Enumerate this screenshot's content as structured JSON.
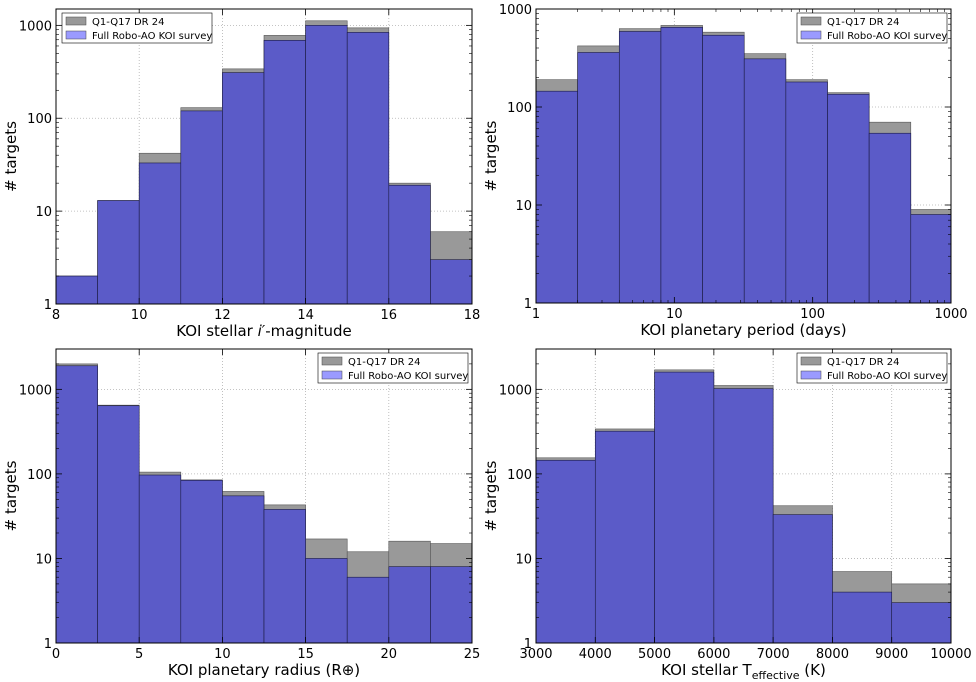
{
  "colors": {
    "q1q17": "#999999",
    "q1q17_edge": "#555555",
    "robo": "#5b5bc8",
    "robo_legend": "#9a9aff",
    "grid": "#b0b0b0"
  },
  "chart_data": [
    {
      "type": "bar",
      "id": "imag",
      "xlabel_prefix": "KOI stellar ",
      "xlabel_italic": "i′",
      "xlabel_suffix": "-magnitude",
      "ylabel": "# targets",
      "xlim": [
        8,
        18
      ],
      "xscale": "linear",
      "yscale": "log",
      "ylim": [
        1,
        1500
      ],
      "xticks": [
        8,
        10,
        12,
        14,
        16,
        18
      ],
      "xtick_labels": [
        "8",
        "10",
        "12",
        "14",
        "16",
        "18"
      ],
      "yticks": [
        1,
        10,
        100,
        1000
      ],
      "ytick_labels": [
        "1",
        "10",
        "100",
        "1000"
      ],
      "bin_edges": [
        8,
        9,
        10,
        11,
        12,
        13,
        14,
        15,
        16,
        17,
        18
      ],
      "series": [
        {
          "name": "Q1-Q17 DR 24",
          "values": [
            2,
            13,
            42,
            130,
            340,
            780,
            1120,
            940,
            20,
            6
          ]
        },
        {
          "name": "Full Robo-AO KOI survey",
          "values": [
            2,
            13,
            33,
            120,
            310,
            690,
            1000,
            840,
            19,
            3
          ]
        }
      ],
      "legend_position": "upper left"
    },
    {
      "type": "bar",
      "id": "period",
      "xlabel": "KOI planetary period (days)",
      "ylabel": "# targets",
      "xlim": [
        1,
        1000
      ],
      "xscale": "log",
      "yscale": "log",
      "ylim": [
        1,
        1000
      ],
      "xticks": [
        1,
        10,
        100,
        1000
      ],
      "xtick_labels": [
        "1",
        "10",
        "100",
        "1000"
      ],
      "yticks": [
        1,
        10,
        100,
        1000
      ],
      "ytick_labels": [
        "1",
        "10",
        "100",
        "1000"
      ],
      "bin_edges": [
        1,
        2,
        4,
        8,
        16,
        32,
        64,
        128,
        256,
        512,
        1000
      ],
      "series": [
        {
          "name": "Q1-Q17 DR 24",
          "values": [
            190,
            420,
            630,
            680,
            580,
            350,
            190,
            140,
            70,
            9
          ]
        },
        {
          "name": "Full Robo-AO KOI survey",
          "values": [
            145,
            360,
            590,
            650,
            540,
            310,
            180,
            135,
            54,
            8
          ]
        }
      ],
      "legend_position": "upper right"
    },
    {
      "type": "bar",
      "id": "radius",
      "xlabel": "KOI planetary radius (R⊕)",
      "ylabel": "# targets",
      "xlim": [
        0,
        25
      ],
      "xscale": "linear",
      "yscale": "log",
      "ylim": [
        1,
        3000
      ],
      "xticks": [
        0,
        5,
        10,
        15,
        20,
        25
      ],
      "xtick_labels": [
        "0",
        "5",
        "10",
        "15",
        "20",
        "25"
      ],
      "yticks": [
        1,
        10,
        100,
        1000
      ],
      "ytick_labels": [
        "1",
        "10",
        "100",
        "1000"
      ],
      "bin_edges": [
        0,
        2.5,
        5,
        7.5,
        10,
        12.5,
        15,
        17.5,
        20,
        22.5,
        25
      ],
      "series": [
        {
          "name": "Q1-Q17 DR 24",
          "values": [
            2000,
            650,
            105,
            85,
            62,
            43,
            17,
            12,
            16,
            15
          ]
        },
        {
          "name": "Full Robo-AO KOI survey",
          "values": [
            1900,
            640,
            97,
            84,
            55,
            38,
            10,
            6,
            8,
            8
          ]
        }
      ],
      "legend_position": "upper right"
    },
    {
      "type": "bar",
      "id": "teff",
      "xlabel_prefix": "KOI stellar T",
      "xlabel_sub": "effective",
      "xlabel_suffix": " (K)",
      "ylabel": "# targets",
      "xlim": [
        3000,
        10000
      ],
      "xscale": "linear",
      "yscale": "log",
      "ylim": [
        1,
        3000
      ],
      "xticks": [
        3000,
        4000,
        5000,
        6000,
        7000,
        8000,
        9000,
        10000
      ],
      "xtick_labels": [
        "3000",
        "4000",
        "5000",
        "6000",
        "7000",
        "8000",
        "9000",
        "10000"
      ],
      "yticks": [
        1,
        10,
        100,
        1000
      ],
      "ytick_labels": [
        "1",
        "10",
        "100",
        "1000"
      ],
      "bin_edges": [
        3000,
        4000,
        5000,
        6000,
        7000,
        8000,
        9000,
        10000
      ],
      "series": [
        {
          "name": "Q1-Q17 DR 24",
          "values": [
            155,
            340,
            1700,
            1110,
            42,
            7,
            5
          ]
        },
        {
          "name": "Full Robo-AO KOI survey",
          "values": [
            145,
            320,
            1600,
            1020,
            33,
            4,
            3
          ]
        }
      ],
      "legend_position": "upper right"
    }
  ]
}
